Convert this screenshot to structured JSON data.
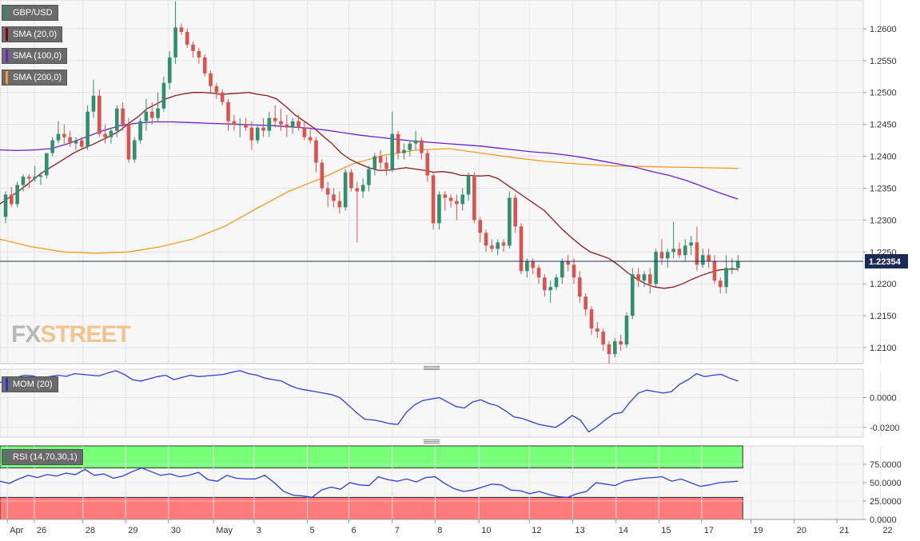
{
  "legend": {
    "symbol": {
      "label": "GBP/USD",
      "color": "#2e8b6e"
    },
    "sma20": {
      "label": "SMA (20,0)",
      "color": "#8b0000"
    },
    "sma100": {
      "label": "SMA (100,0)",
      "color": "#6a1fd1"
    },
    "sma200": {
      "label": "SMA (200,0)",
      "color": "#f59a23"
    },
    "mom": {
      "label": "MOM (20)",
      "color": "#2233cc"
    },
    "rsi": {
      "label": "RSI (14,70,30,1)",
      "color": "#2e8b57"
    }
  },
  "watermark": {
    "part1": "FX",
    "part2": "STREET"
  },
  "current_price": {
    "label": "1.22354",
    "value": 1.22354
  },
  "colors": {
    "up": "#2f8f6f",
    "down": "#d9534f",
    "sma20": "#8b1a1a",
    "sma100": "#6a1fd1",
    "sma200": "#f59a23",
    "osc": "#2a3fd6",
    "rsi_overbought": "#77ff77",
    "rsi_oversold": "#ff7b7b"
  },
  "chart_data": [
    {
      "type": "candlestick",
      "title": "GBP/USD",
      "ylim": [
        1.2075,
        1.2645
      ],
      "y_ticks": [
        "1.2600",
        "1.2550",
        "1.2500",
        "1.2450",
        "1.2400",
        "1.2350",
        "1.2300",
        "1.2250",
        "1.2200",
        "1.2150",
        "1.2100"
      ],
      "x_ticks": [
        {
          "label": "Apr",
          "at": 0.3
        },
        {
          "label": "26",
          "at": 4.9
        },
        {
          "label": "28",
          "at": 13.2
        },
        {
          "label": "29",
          "at": 20.5
        },
        {
          "label": "30",
          "at": 27.8
        },
        {
          "label": "May",
          "at": 35.5
        },
        {
          "label": "3",
          "at": 42.4
        },
        {
          "label": "5",
          "at": 51.5
        },
        {
          "label": "6",
          "at": 58.6
        },
        {
          "label": "7",
          "at": 66.0
        },
        {
          "label": "8",
          "at": 73.3
        },
        {
          "label": "10",
          "at": 80.8
        },
        {
          "label": "12",
          "at": 89.4
        },
        {
          "label": "13",
          "at": 96.8
        },
        {
          "label": "14",
          "at": 104.2
        },
        {
          "label": "15",
          "at": 111.5
        },
        {
          "label": "17",
          "at": 118.8
        },
        {
          "label": "19",
          "at": 127.2
        },
        {
          "label": "20",
          "at": 134.6
        },
        {
          "label": "21",
          "at": 141.9
        },
        {
          "label": "22",
          "at": 149.3
        }
      ],
      "ohlc": [
        [
          1.2305,
          1.2345,
          1.2295,
          1.234
        ],
        [
          1.234,
          1.2352,
          1.232,
          1.2325
        ],
        [
          1.2325,
          1.236,
          1.232,
          1.2355
        ],
        [
          1.2355,
          1.2372,
          1.2345,
          1.2368
        ],
        [
          1.2368,
          1.2372,
          1.235,
          1.2365
        ],
        [
          1.2365,
          1.2385,
          1.236,
          1.2368
        ],
        [
          1.2368,
          1.2375,
          1.2355,
          1.237
        ],
        [
          1.237,
          1.24,
          1.2365,
          1.2405
        ],
        [
          1.2405,
          1.243,
          1.24,
          1.2425
        ],
        [
          1.2425,
          1.2455,
          1.242,
          1.2435
        ],
        [
          1.2435,
          1.245,
          1.242,
          1.243
        ],
        [
          1.243,
          1.244,
          1.2415,
          1.242
        ],
        [
          1.242,
          1.243,
          1.241,
          1.2425
        ],
        [
          1.2425,
          1.243,
          1.241,
          1.2415
        ],
        [
          1.2415,
          1.248,
          1.241,
          1.247
        ],
        [
          1.247,
          1.252,
          1.246,
          1.2495
        ],
        [
          1.2495,
          1.2505,
          1.243,
          1.2435
        ],
        [
          1.2435,
          1.245,
          1.242,
          1.243
        ],
        [
          1.243,
          1.2445,
          1.242,
          1.244
        ],
        [
          1.244,
          1.248,
          1.243,
          1.2475
        ],
        [
          1.2475,
          1.2485,
          1.244,
          1.245
        ],
        [
          1.245,
          1.246,
          1.239,
          1.2395
        ],
        [
          1.2395,
          1.243,
          1.239,
          1.2425
        ],
        [
          1.2425,
          1.246,
          1.242,
          1.2455
        ],
        [
          1.2455,
          1.249,
          1.244,
          1.247
        ],
        [
          1.247,
          1.2485,
          1.245,
          1.246
        ],
        [
          1.246,
          1.25,
          1.2455,
          1.2475
        ],
        [
          1.2475,
          1.2525,
          1.247,
          1.2515
        ],
        [
          1.2515,
          1.2565,
          1.2505,
          1.2555
        ],
        [
          1.2555,
          1.2643,
          1.2545,
          1.2602
        ],
        [
          1.2602,
          1.2608,
          1.259,
          1.2595
        ],
        [
          1.2595,
          1.26,
          1.257,
          1.2575
        ],
        [
          1.2575,
          1.258,
          1.2555,
          1.2565
        ],
        [
          1.2565,
          1.257,
          1.2545,
          1.2555
        ],
        [
          1.2555,
          1.256,
          1.2525,
          1.253
        ],
        [
          1.253,
          1.2535,
          1.25,
          1.251
        ],
        [
          1.251,
          1.2515,
          1.249,
          1.25
        ],
        [
          1.25,
          1.2505,
          1.248,
          1.2485
        ],
        [
          1.2485,
          1.249,
          1.244,
          1.2455
        ],
        [
          1.2455,
          1.2465,
          1.244,
          1.245
        ],
        [
          1.245,
          1.246,
          1.243,
          1.245
        ],
        [
          1.245,
          1.246,
          1.244,
          1.2445
        ],
        [
          1.2445,
          1.2455,
          1.241,
          1.2425
        ],
        [
          1.2425,
          1.245,
          1.242,
          1.2445
        ],
        [
          1.2445,
          1.246,
          1.243,
          1.244
        ],
        [
          1.244,
          1.247,
          1.243,
          1.246
        ],
        [
          1.246,
          1.248,
          1.2445,
          1.2455
        ],
        [
          1.2455,
          1.2475,
          1.244,
          1.245
        ],
        [
          1.245,
          1.2465,
          1.243,
          1.2445
        ],
        [
          1.2445,
          1.246,
          1.2435,
          1.2455
        ],
        [
          1.2455,
          1.2465,
          1.244,
          1.2445
        ],
        [
          1.2445,
          1.2455,
          1.2425,
          1.243
        ],
        [
          1.243,
          1.2445,
          1.242,
          1.2425
        ],
        [
          1.2425,
          1.243,
          1.2375,
          1.239
        ],
        [
          1.239,
          1.2395,
          1.2345,
          1.235
        ],
        [
          1.235,
          1.236,
          1.232,
          1.234
        ],
        [
          1.234,
          1.235,
          1.232,
          1.233
        ],
        [
          1.233,
          1.2345,
          1.231,
          1.232
        ],
        [
          1.232,
          1.238,
          1.2315,
          1.2375
        ],
        [
          1.2375,
          1.238,
          1.2345,
          1.235
        ],
        [
          1.235,
          1.236,
          1.2265,
          1.2345
        ],
        [
          1.2345,
          1.2365,
          1.2335,
          1.2355
        ],
        [
          1.2355,
          1.2385,
          1.2345,
          1.238
        ],
        [
          1.238,
          1.2405,
          1.237,
          1.24
        ],
        [
          1.24,
          1.241,
          1.238,
          1.239
        ],
        [
          1.239,
          1.24,
          1.237,
          1.238
        ],
        [
          1.238,
          1.247,
          1.2375,
          1.2435
        ],
        [
          1.2435,
          1.244,
          1.2395,
          1.2405
        ],
        [
          1.2405,
          1.242,
          1.2395,
          1.241
        ],
        [
          1.241,
          1.2425,
          1.24,
          1.242
        ],
        [
          1.242,
          1.244,
          1.241,
          1.2425
        ],
        [
          1.2425,
          1.243,
          1.2395,
          1.2405
        ],
        [
          1.2405,
          1.241,
          1.236,
          1.237
        ],
        [
          1.237,
          1.2375,
          1.2285,
          1.2295
        ],
        [
          1.2295,
          1.2345,
          1.2285,
          1.234
        ],
        [
          1.234,
          1.2345,
          1.2315,
          1.2335
        ],
        [
          1.2335,
          1.234,
          1.232,
          1.233
        ],
        [
          1.233,
          1.234,
          1.23,
          1.2325
        ],
        [
          1.2325,
          1.235,
          1.2315,
          1.234
        ],
        [
          1.234,
          1.2375,
          1.233,
          1.237
        ],
        [
          1.237,
          1.2375,
          1.2295,
          1.23
        ],
        [
          1.23,
          1.2305,
          1.2265,
          1.228
        ],
        [
          1.228,
          1.2285,
          1.225,
          1.226
        ],
        [
          1.226,
          1.227,
          1.225,
          1.2255
        ],
        [
          1.2255,
          1.227,
          1.2245,
          1.2265
        ],
        [
          1.2265,
          1.227,
          1.225,
          1.226
        ],
        [
          1.226,
          1.2345,
          1.2255,
          1.2335
        ],
        [
          1.2335,
          1.234,
          1.228,
          1.229
        ],
        [
          1.229,
          1.2295,
          1.2215,
          1.222
        ],
        [
          1.222,
          1.224,
          1.221,
          1.2235
        ],
        [
          1.2235,
          1.224,
          1.2215,
          1.2225
        ],
        [
          1.2225,
          1.223,
          1.22,
          1.221
        ],
        [
          1.221,
          1.2215,
          1.218,
          1.219
        ],
        [
          1.219,
          1.2205,
          1.217,
          1.2195
        ],
        [
          1.2195,
          1.2215,
          1.219,
          1.221
        ],
        [
          1.221,
          1.224,
          1.22,
          1.2235
        ],
        [
          1.2235,
          1.2245,
          1.222,
          1.223
        ],
        [
          1.223,
          1.224,
          1.22,
          1.221
        ],
        [
          1.221,
          1.222,
          1.217,
          1.218
        ],
        [
          1.218,
          1.2185,
          1.215,
          1.216
        ],
        [
          1.216,
          1.2165,
          1.212,
          1.213
        ],
        [
          1.213,
          1.214,
          1.2115,
          1.2125
        ],
        [
          1.2125,
          1.213,
          1.2095,
          1.2105
        ],
        [
          1.2105,
          1.211,
          1.2075,
          1.209
        ],
        [
          1.209,
          1.2115,
          1.2085,
          1.211
        ],
        [
          1.211,
          1.212,
          1.2095,
          1.2105
        ],
        [
          1.2105,
          1.2155,
          1.21,
          1.215
        ],
        [
          1.215,
          1.2225,
          1.2145,
          1.2215
        ],
        [
          1.2215,
          1.2225,
          1.2195,
          1.2205
        ],
        [
          1.2205,
          1.222,
          1.2195,
          1.2215
        ],
        [
          1.2215,
          1.2225,
          1.2185,
          1.22
        ],
        [
          1.22,
          1.2255,
          1.2195,
          1.225
        ],
        [
          1.225,
          1.227,
          1.223,
          1.224
        ],
        [
          1.224,
          1.2255,
          1.2225,
          1.225
        ],
        [
          1.225,
          1.2297,
          1.224,
          1.2255
        ],
        [
          1.2255,
          1.2265,
          1.224,
          1.2245
        ],
        [
          1.2245,
          1.227,
          1.2235,
          1.226
        ],
        [
          1.226,
          1.2275,
          1.2245,
          1.2265
        ],
        [
          1.2265,
          1.229,
          1.222,
          1.223
        ],
        [
          1.223,
          1.2255,
          1.2225,
          1.2245
        ],
        [
          1.2245,
          1.2255,
          1.2225,
          1.2235
        ],
        [
          1.2235,
          1.2245,
          1.22,
          1.2205
        ],
        [
          1.2205,
          1.221,
          1.2185,
          1.2195
        ],
        [
          1.2195,
          1.2245,
          1.2185,
          1.2225
        ],
        [
          1.2225,
          1.224,
          1.2215,
          1.2225
        ],
        [
          1.2225,
          1.2245,
          1.222,
          1.2235
        ]
      ],
      "sma20": [
        1.2325,
        1.2335,
        1.2345,
        1.2356,
        1.2368,
        1.2378,
        1.2387,
        1.2396,
        1.2405,
        1.2412,
        1.2418,
        1.2425,
        1.2432,
        1.244,
        1.2452,
        1.2462,
        1.2475,
        1.2482,
        1.249,
        1.2495,
        1.2498,
        1.25,
        1.25,
        1.2499,
        1.2497,
        1.2498,
        1.2499,
        1.25,
        1.2497,
        1.2495,
        1.249,
        1.2478,
        1.2465,
        1.2455,
        1.2445,
        1.2432,
        1.242,
        1.2405,
        1.2395,
        1.2388,
        1.2382,
        1.2378,
        1.2378,
        1.238,
        1.2382,
        1.238,
        1.2378,
        1.2375,
        1.2376,
        1.2374,
        1.237,
        1.237,
        1.2369,
        1.237,
        1.2365,
        1.2355,
        1.2345,
        1.2335,
        1.2325,
        1.2315,
        1.23,
        1.2285,
        1.2272,
        1.226,
        1.225,
        1.2245,
        1.224,
        1.223,
        1.2218,
        1.2208,
        1.22,
        1.2195,
        1.2193,
        1.2195,
        1.22,
        1.2207,
        1.2213,
        1.2218,
        1.2222,
        1.2223,
        1.2223
      ],
      "sma20_start": 50,
      "sma100": [
        1.241,
        1.2409,
        1.241,
        1.2412,
        1.242,
        1.243,
        1.244,
        1.2448,
        1.2452,
        1.2454,
        1.2454,
        1.2453,
        1.2452,
        1.2451,
        1.245,
        1.2449,
        1.2448,
        1.2446,
        1.2444,
        1.2441,
        1.2437,
        1.2433,
        1.243,
        1.2427,
        1.2424,
        1.2422,
        1.242,
        1.2418,
        1.2416,
        1.2413,
        1.241,
        1.2407,
        1.2405,
        1.2402,
        1.2398,
        1.2393,
        1.2388,
        1.2383,
        1.2376,
        1.237,
        1.2362,
        1.2352,
        1.2342,
        1.2333
      ],
      "sma200": [
        1.227,
        1.2258,
        1.225,
        1.2248,
        1.225,
        1.2258,
        1.227,
        1.229,
        1.2318,
        1.2345,
        1.2365,
        1.2388,
        1.2402,
        1.241,
        1.2412,
        1.2405,
        1.2398,
        1.2392,
        1.2388,
        1.2385,
        1.2384,
        1.2383,
        1.2382,
        1.2381
      ],
      "mom_title": "MOM (20)",
      "mom_ylim": [
        -0.0265,
        0.019
      ],
      "mom_y_ticks": [
        "0.0000",
        "-0.0200"
      ],
      "mom": [
        0.01,
        0.012,
        0.0135,
        0.015,
        0.0145,
        0.013,
        0.014,
        0.015,
        0.0142,
        0.016,
        0.0155,
        0.015,
        0.0145,
        0.0165,
        0.018,
        0.0155,
        0.012,
        0.011,
        0.0125,
        0.014,
        0.015,
        0.012,
        0.0135,
        0.015,
        0.014,
        0.0145,
        0.015,
        0.0155,
        0.017,
        0.018,
        0.016,
        0.015,
        0.013,
        0.012,
        0.011,
        0.008,
        0.006,
        0.005,
        0.004,
        0.003,
        0.002,
        0.0,
        -0.005,
        -0.01,
        -0.0145,
        -0.015,
        -0.016,
        -0.0175,
        -0.018,
        -0.01,
        -0.005,
        -0.002,
        -0.001,
        0.0,
        -0.003,
        -0.006,
        -0.007,
        -0.003,
        -0.0015,
        -0.004,
        -0.0055,
        -0.009,
        -0.013,
        -0.014,
        -0.016,
        -0.018,
        -0.019,
        -0.02,
        -0.0165,
        -0.012,
        -0.015,
        -0.023,
        -0.0195,
        -0.015,
        -0.011,
        -0.01,
        -0.003,
        0.003,
        0.005,
        0.004,
        0.003,
        0.004,
        0.009,
        0.012,
        0.016,
        0.014,
        0.015,
        0.0155,
        0.013,
        0.011
      ],
      "rsi_title": "RSI (14,70,30,1)",
      "rsi_ylim": [
        0,
        100
      ],
      "rsi_y_ticks": [
        "75.0000",
        "50.0000",
        "25.0000",
        "0.0000"
      ],
      "rsi_bands": {
        "overbought": 70,
        "oversold": 30
      },
      "rsi": [
        52,
        49,
        55,
        60,
        57,
        61,
        59,
        63,
        61,
        68,
        60,
        62,
        56,
        59,
        65,
        70,
        65,
        60,
        62,
        58,
        60,
        64,
        54,
        52,
        60,
        56,
        55,
        55,
        60,
        50,
        38,
        33,
        32,
        30,
        40,
        44,
        41,
        50,
        47,
        46,
        58,
        54,
        52,
        55,
        51,
        57,
        58,
        49,
        42,
        38,
        40,
        44,
        48,
        47,
        40,
        39,
        35,
        38,
        34,
        31,
        30,
        35,
        38,
        50,
        48,
        46,
        52,
        54,
        56,
        57,
        58,
        52,
        55,
        50,
        45,
        47,
        50,
        51,
        52
      ]
    }
  ]
}
